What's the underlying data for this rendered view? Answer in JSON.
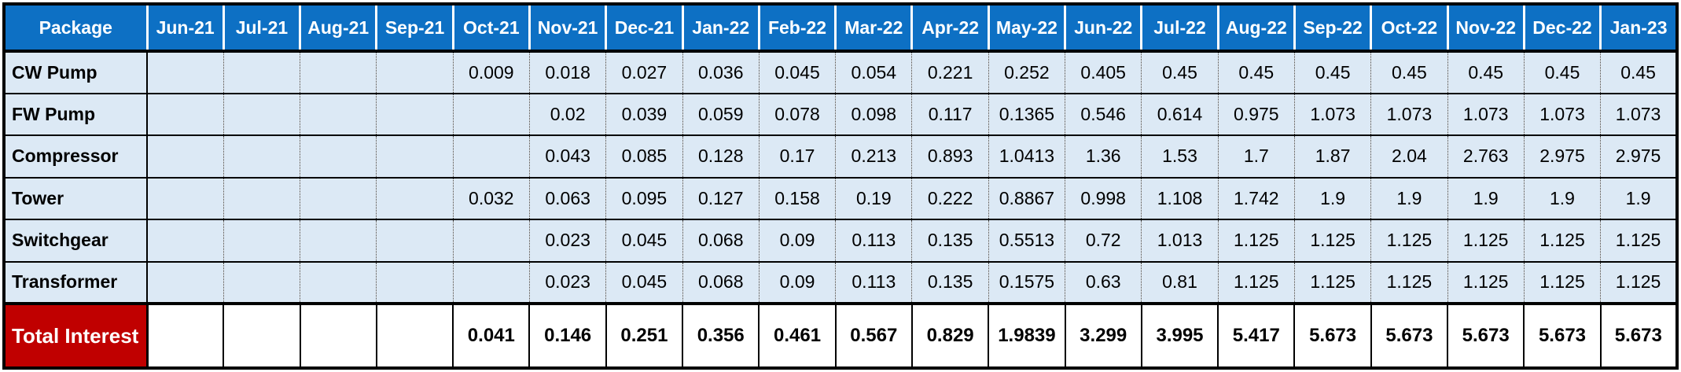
{
  "colors": {
    "header_bg": "#0d70c4",
    "header_text": "#ffffff",
    "label_bg": "#c6e0b4",
    "cell_bg": "#dce9f5",
    "total_label_bg": "#c00000",
    "total_label_text": "#ffffff",
    "total_cell_bg": "#ffffff",
    "body_text": "#000000",
    "border": "#000000"
  },
  "chart_data": {
    "type": "table",
    "title": "",
    "columns": [
      "Package",
      "Jun-21",
      "Jul-21",
      "Aug-21",
      "Sep-21",
      "Oct-21",
      "Nov-21",
      "Dec-21",
      "Jan-22",
      "Feb-22",
      "Mar-22",
      "Apr-22",
      "May-22",
      "Jun-22",
      "Jul-22",
      "Aug-22",
      "Sep-22",
      "Oct-22",
      "Nov-22",
      "Dec-22",
      "Jan-23"
    ],
    "rows": [
      {
        "label": "CW Pump",
        "kind": "package",
        "values": [
          "",
          "",
          "",
          "",
          "0.009",
          "0.018",
          "0.027",
          "0.036",
          "0.045",
          "0.054",
          "0.221",
          "0.252",
          "0.405",
          "0.45",
          "0.45",
          "0.45",
          "0.45",
          "0.45",
          "0.45",
          "0.45"
        ]
      },
      {
        "label": "FW Pump",
        "kind": "package",
        "values": [
          "",
          "",
          "",
          "",
          "",
          "0.02",
          "0.039",
          "0.059",
          "0.078",
          "0.098",
          "0.117",
          "0.1365",
          "0.546",
          "0.614",
          "0.975",
          "1.073",
          "1.073",
          "1.073",
          "1.073",
          "1.073"
        ]
      },
      {
        "label": "Compressor",
        "kind": "package",
        "values": [
          "",
          "",
          "",
          "",
          "",
          "0.043",
          "0.085",
          "0.128",
          "0.17",
          "0.213",
          "0.893",
          "1.0413",
          "1.36",
          "1.53",
          "1.7",
          "1.87",
          "2.04",
          "2.763",
          "2.975",
          "2.975"
        ]
      },
      {
        "label": "Tower",
        "kind": "package",
        "values": [
          "",
          "",
          "",
          "",
          "0.032",
          "0.063",
          "0.095",
          "0.127",
          "0.158",
          "0.19",
          "0.222",
          "0.8867",
          "0.998",
          "1.108",
          "1.742",
          "1.9",
          "1.9",
          "1.9",
          "1.9",
          "1.9"
        ]
      },
      {
        "label": "Switchgear",
        "kind": "package",
        "values": [
          "",
          "",
          "",
          "",
          "",
          "0.023",
          "0.045",
          "0.068",
          "0.09",
          "0.113",
          "0.135",
          "0.5513",
          "0.72",
          "1.013",
          "1.125",
          "1.125",
          "1.125",
          "1.125",
          "1.125",
          "1.125"
        ]
      },
      {
        "label": "Transformer",
        "kind": "package",
        "values": [
          "",
          "",
          "",
          "",
          "",
          "0.023",
          "0.045",
          "0.068",
          "0.09",
          "0.113",
          "0.135",
          "0.1575",
          "0.63",
          "0.81",
          "1.125",
          "1.125",
          "1.125",
          "1.125",
          "1.125",
          "1.125"
        ]
      },
      {
        "label": "Total Interest",
        "kind": "total",
        "values": [
          "",
          "",
          "",
          "",
          "0.041",
          "0.146",
          "0.251",
          "0.356",
          "0.461",
          "0.567",
          "0.829",
          "1.9839",
          "3.299",
          "3.995",
          "5.417",
          "5.673",
          "5.673",
          "5.673",
          "5.673",
          "5.673"
        ]
      }
    ]
  }
}
